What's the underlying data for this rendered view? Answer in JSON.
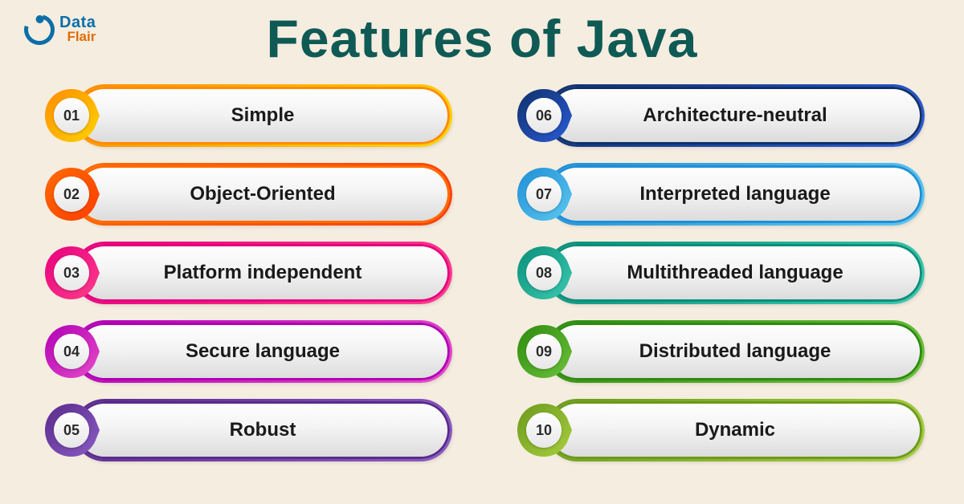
{
  "logo": {
    "top": "Data",
    "bottom": "Flair"
  },
  "title": "Features of Java",
  "background_color": "#f5ede0",
  "title_color": "#0f5a55",
  "title_fontsize": 66,
  "label_fontsize": 24,
  "label_color": "#1a1a1a",
  "number_fontsize": 18,
  "items": [
    {
      "num": "01",
      "label": "Simple",
      "c1": "#ff8c00",
      "c2": "#ffd400"
    },
    {
      "num": "02",
      "label": "Object-Oriented",
      "c1": "#ff6a00",
      "c2": "#ff3d00"
    },
    {
      "num": "03",
      "label": "Platform independent",
      "c1": "#e6007e",
      "c2": "#ff3d8b"
    },
    {
      "num": "04",
      "label": "Secure language",
      "c1": "#b100b5",
      "c2": "#e64cc9"
    },
    {
      "num": "05",
      "label": "Robust",
      "c1": "#5b2b8c",
      "c2": "#8a5cc4"
    },
    {
      "num": "06",
      "label": "Architecture-neutral",
      "c1": "#10316b",
      "c2": "#2a5bd7"
    },
    {
      "num": "07",
      "label": "Interpreted language",
      "c1": "#1f8fd6",
      "c2": "#5cc8ef"
    },
    {
      "num": "08",
      "label": "Multithreaded language",
      "c1": "#0a8f7a",
      "c2": "#3cc9b0"
    },
    {
      "num": "09",
      "label": "Distributed language",
      "c1": "#2e8b0f",
      "c2": "#6cc23a"
    },
    {
      "num": "10",
      "label": "Dynamic",
      "c1": "#6b9a1c",
      "c2": "#a9cf3e"
    }
  ]
}
